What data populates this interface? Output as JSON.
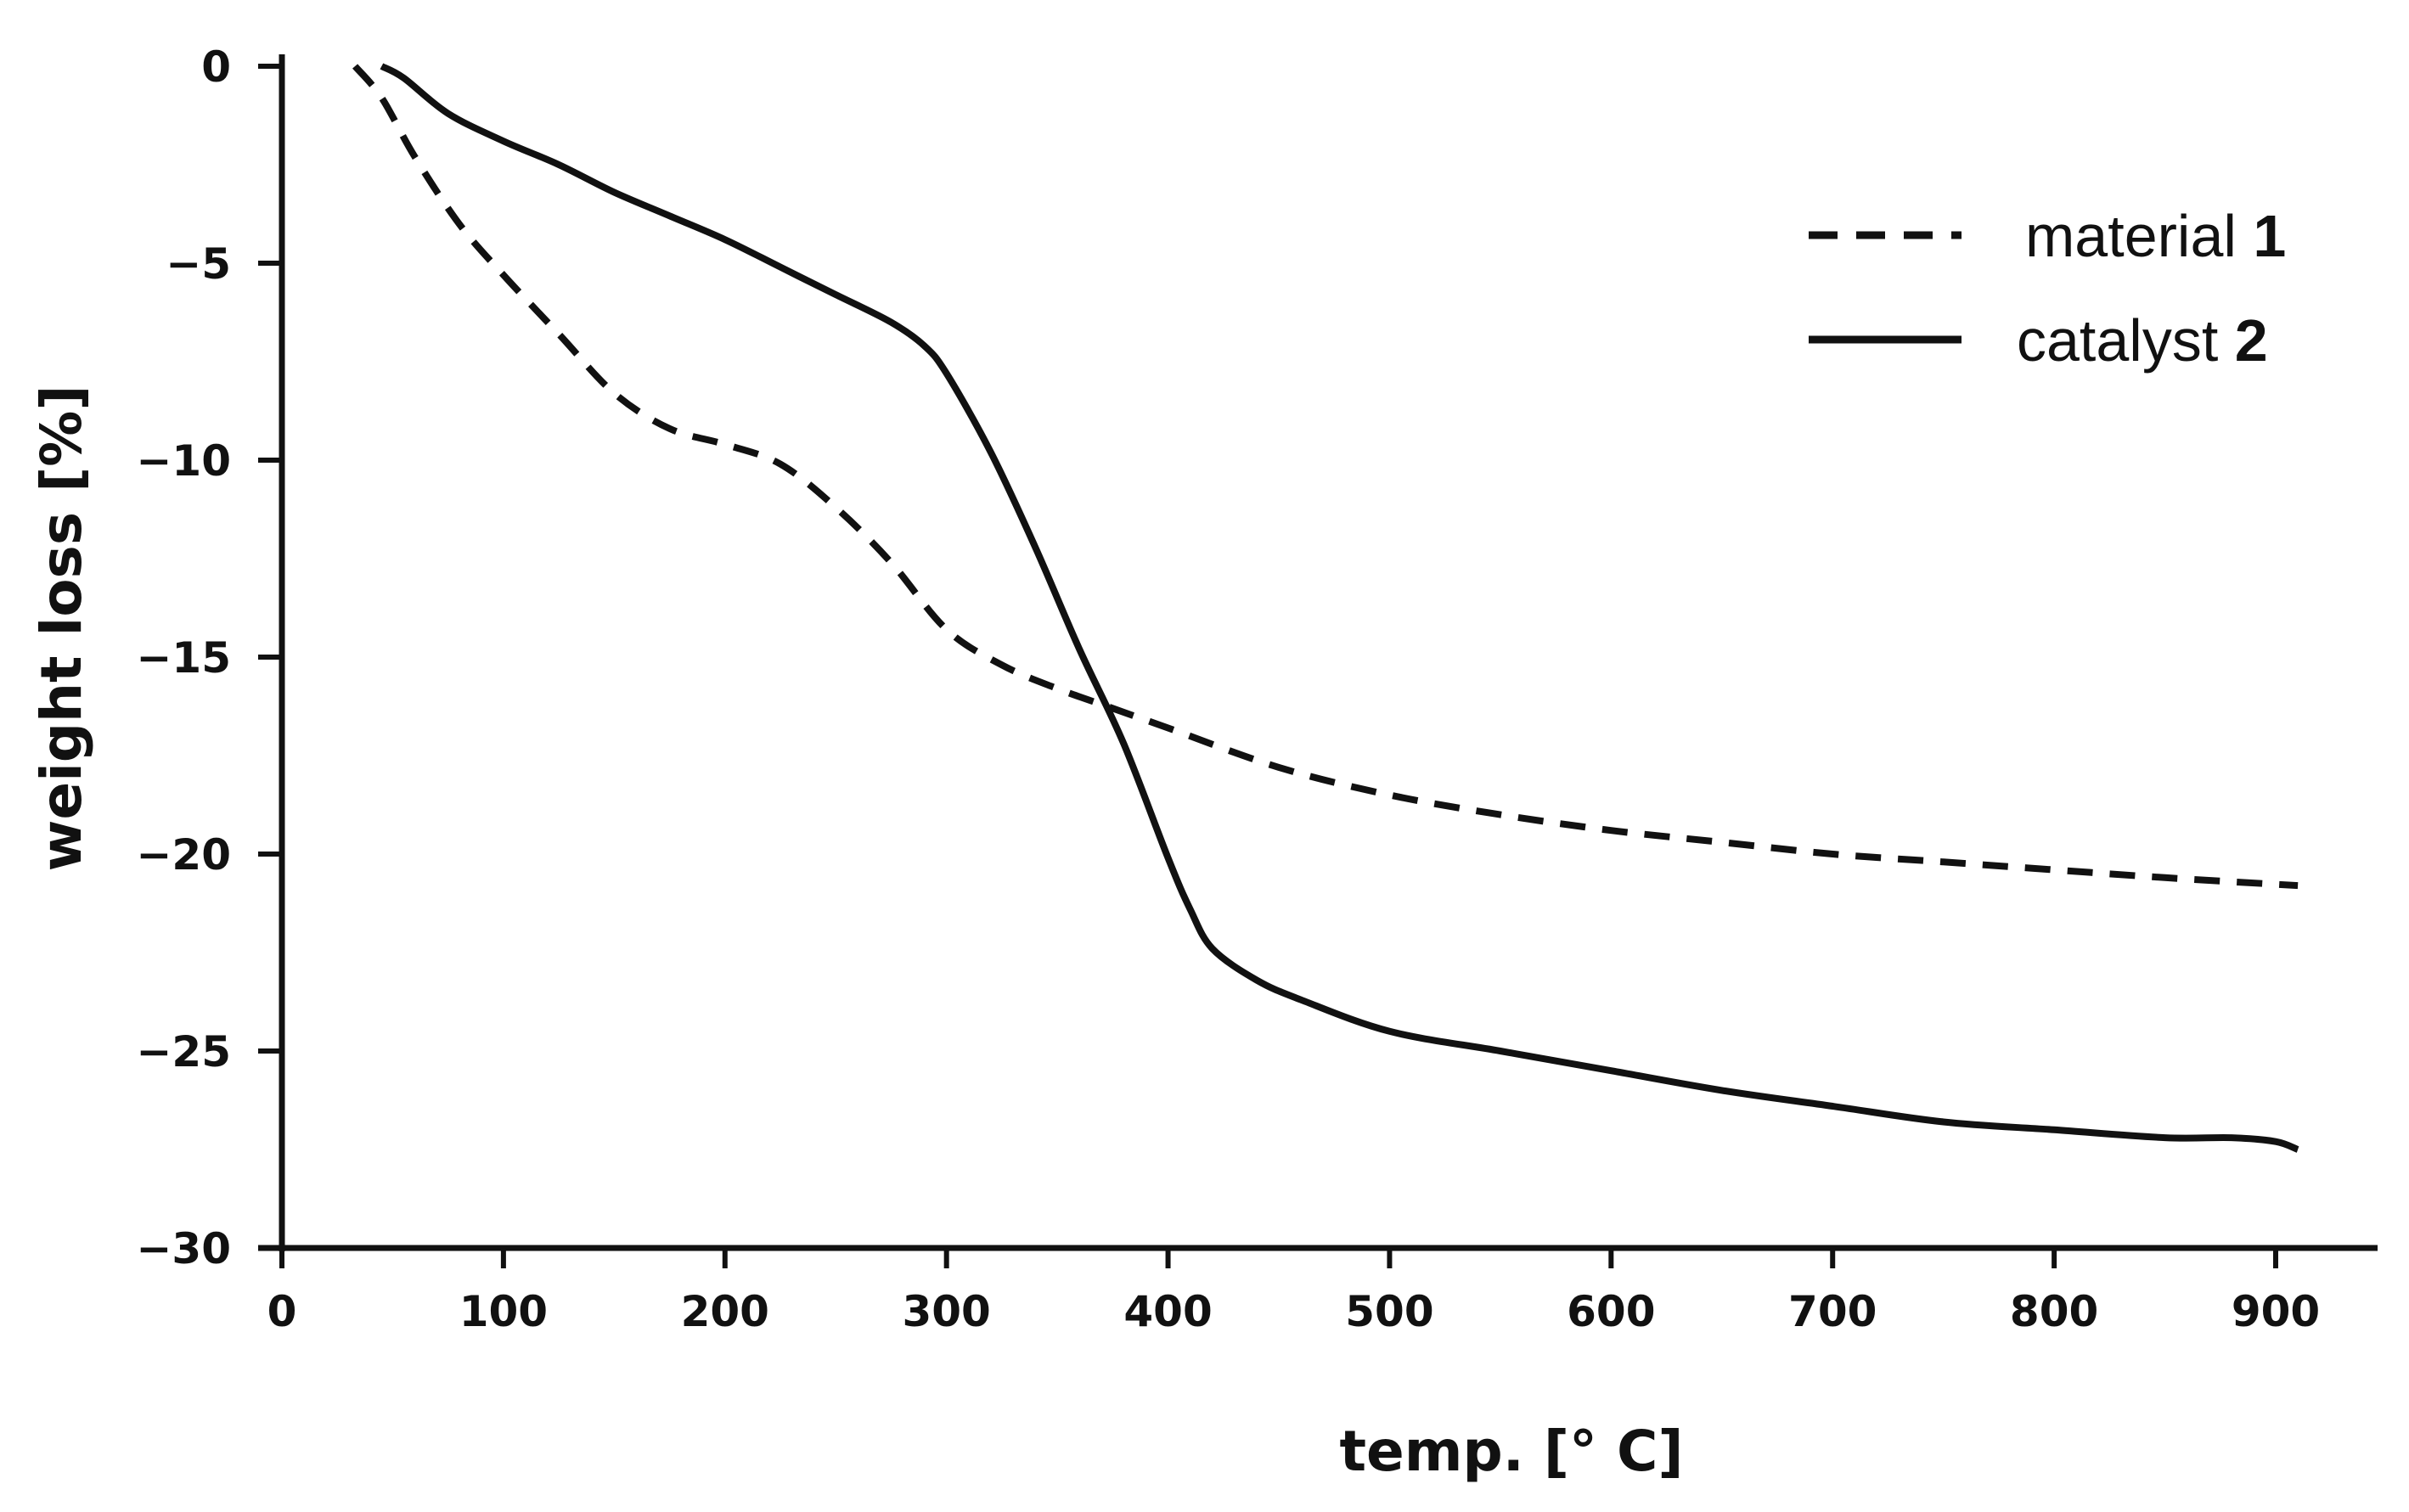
{
  "chart_data": {
    "type": "line",
    "title": "",
    "xlabel": "temp. [° C]",
    "ylabel": "weight loss [%]",
    "xlim": [
      0,
      950
    ],
    "ylim": [
      -30,
      0
    ],
    "xticks": [
      0,
      100,
      200,
      300,
      400,
      500,
      600,
      700,
      800,
      900
    ],
    "yticks": [
      0,
      -5,
      -10,
      -15,
      -20,
      -25,
      -30
    ],
    "ytick_labels": [
      "0",
      "−5",
      "−10",
      "−15",
      "−20",
      "−25",
      "−30"
    ],
    "grid": false,
    "legend_position": "top-right",
    "color": "#111111",
    "series": [
      {
        "name": "material 1",
        "legend_label": "material ",
        "legend_number": "1",
        "style": "dashed",
        "x": [
          33,
          45,
          60,
          80,
          100,
          125,
          150,
          175,
          200,
          225,
          250,
          275,
          300,
          325,
          350,
          375,
          400,
          450,
          500,
          550,
          600,
          650,
          700,
          750,
          800,
          850,
          910
        ],
        "y": [
          0,
          -0.8,
          -2.3,
          -4.0,
          -5.3,
          -6.8,
          -8.3,
          -9.2,
          -9.6,
          -10.1,
          -11.2,
          -12.6,
          -14.3,
          -15.2,
          -15.8,
          -16.3,
          -16.8,
          -17.8,
          -18.5,
          -19.0,
          -19.4,
          -19.7,
          -20.0,
          -20.2,
          -20.4,
          -20.6,
          -20.8
        ]
      },
      {
        "name": "catalyst 2",
        "legend_label": "catalyst ",
        "legend_number": "2",
        "style": "solid",
        "x": [
          45,
          55,
          75,
          100,
          125,
          150,
          175,
          200,
          225,
          250,
          275,
          290,
          300,
          320,
          340,
          360,
          380,
          400,
          410,
          420,
          440,
          460,
          500,
          550,
          600,
          650,
          700,
          750,
          800,
          850,
          880,
          900,
          910
        ],
        "y": [
          0,
          -0.3,
          -1.2,
          -1.9,
          -2.5,
          -3.2,
          -3.8,
          -4.4,
          -5.1,
          -5.8,
          -6.5,
          -7.1,
          -7.8,
          -9.8,
          -12.2,
          -14.8,
          -17.2,
          -20.1,
          -21.4,
          -22.4,
          -23.2,
          -23.7,
          -24.5,
          -25.0,
          -25.5,
          -26.0,
          -26.4,
          -26.8,
          -27.0,
          -27.2,
          -27.2,
          -27.3,
          -27.5
        ]
      }
    ]
  }
}
